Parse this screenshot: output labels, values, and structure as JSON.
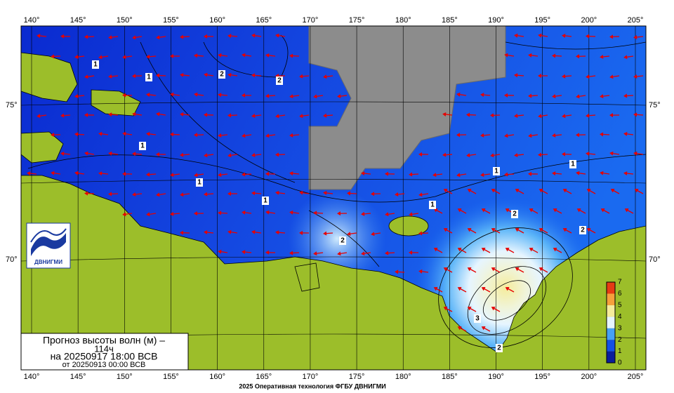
{
  "map": {
    "top_longitudes": [
      "140°",
      "145°",
      "150°",
      "155°",
      "160°",
      "165°",
      "170°",
      "175°",
      "180°",
      "185°",
      "190°",
      "195°",
      "200°",
      "205°"
    ],
    "bottom_longitudes": [
      "140°",
      "145°",
      "150°",
      "155°",
      "160°",
      "165°",
      "170°",
      "175°",
      "180°",
      "185°",
      "190°",
      "195°",
      "200°",
      "205°"
    ],
    "left_latitudes": [
      "75°",
      "70°"
    ],
    "right_latitudes": [
      "75°",
      "70°"
    ],
    "contour_labels": [
      "1",
      "2",
      "2",
      "1",
      "1",
      "1",
      "1",
      "1",
      "1",
      "1",
      "2",
      "2",
      "2",
      "3",
      "2"
    ]
  },
  "colorbar": {
    "ticks": [
      0,
      1,
      2,
      3,
      4,
      5,
      6,
      7
    ],
    "colors": [
      "#0a1e9c",
      "#1450e6",
      "#46a0f5",
      "#e6f5ff",
      "#f5ec9c",
      "#f5a03c",
      "#e63c14",
      "#a01e0a"
    ]
  },
  "title_box": {
    "line1": "Прогноз высоты волн (м) –",
    "line2": "114ч",
    "line3": "на 20250917 18:00 ВСВ",
    "line4": "от 20250913 00:00 ВСВ"
  },
  "logo": {
    "text": "ДВНИГМИ"
  },
  "footer": "2025 Оперативная технология ФГБУ ДВНИГМИ"
}
